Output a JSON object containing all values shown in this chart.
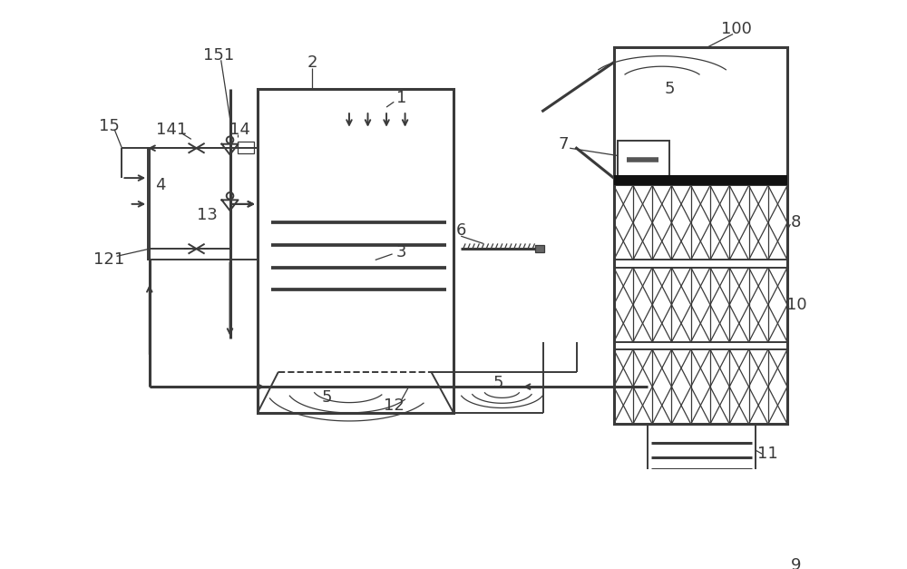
{
  "bg": "#ffffff",
  "lc": "#3a3a3a",
  "lw_thick": 2.2,
  "lw_med": 1.4,
  "lw_thin": 0.9,
  "fs": 13
}
